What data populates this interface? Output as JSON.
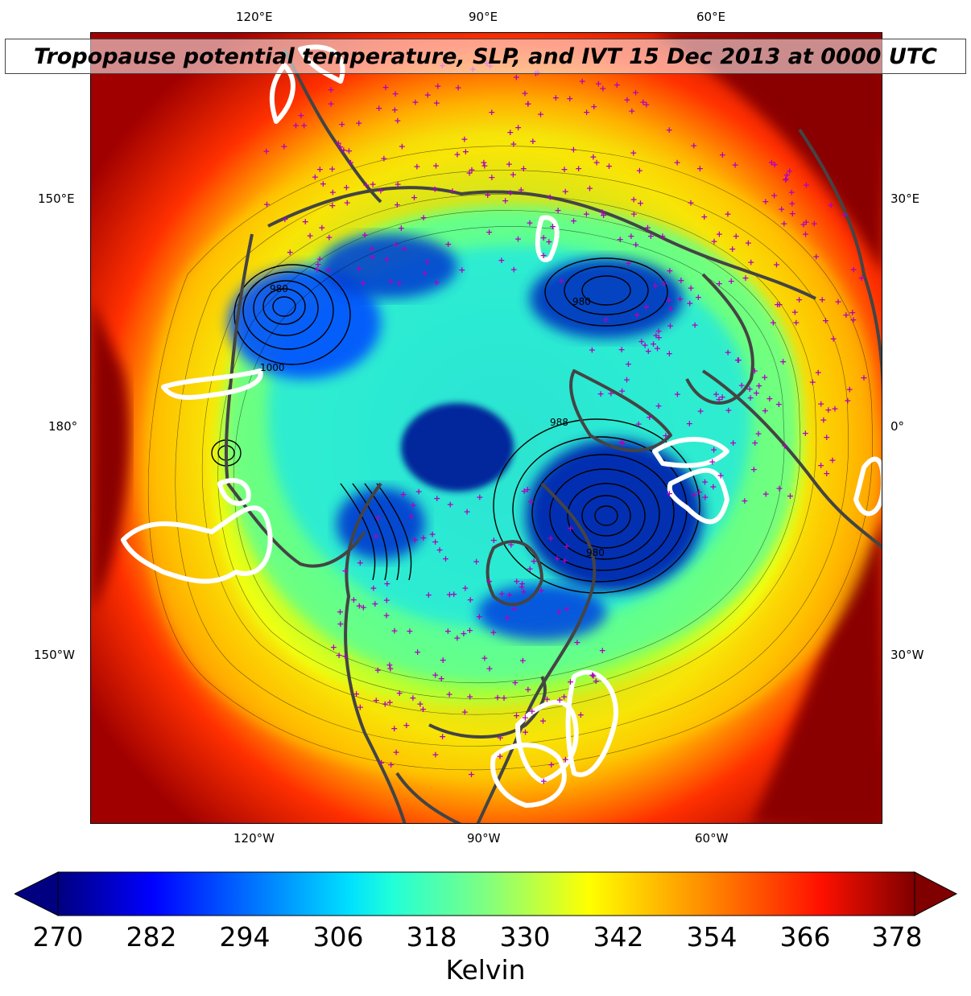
{
  "title": "Tropopause potential temperature, SLP, and IVT 15 Dec 2013 at 0000 UTC",
  "map": {
    "projection": "north-polar-stereographic",
    "lon_labels_top": [
      "120°E",
      "90°E",
      "60°E"
    ],
    "lon_labels_bottom": [
      "120°W",
      "90°W",
      "60°W"
    ],
    "lon_labels_left": [
      "150°E",
      "180°",
      "150°W"
    ],
    "lon_labels_right": [
      "30°E",
      "0°",
      "30°W"
    ],
    "slp_contour_labels": [
      "1000",
      "980",
      "980",
      "988",
      "980"
    ],
    "layers": [
      "tropopause potential temperature (filled)",
      "sea level pressure (black contours)",
      "IVT (white contours)",
      "coastlines (gray)",
      "observation sites (magenta +)"
    ],
    "colors": {
      "coastline": "#444444",
      "slp_contour": "#000000",
      "ivt_contour": "#ffffff",
      "station_marker": "#b000c0"
    }
  },
  "colorbar": {
    "colormap": "jet",
    "extend": "both",
    "min": 270,
    "max": 378,
    "ticks": [
      "270",
      "282",
      "294",
      "306",
      "318",
      "330",
      "342",
      "354",
      "366",
      "378"
    ],
    "label": "Kelvin"
  }
}
